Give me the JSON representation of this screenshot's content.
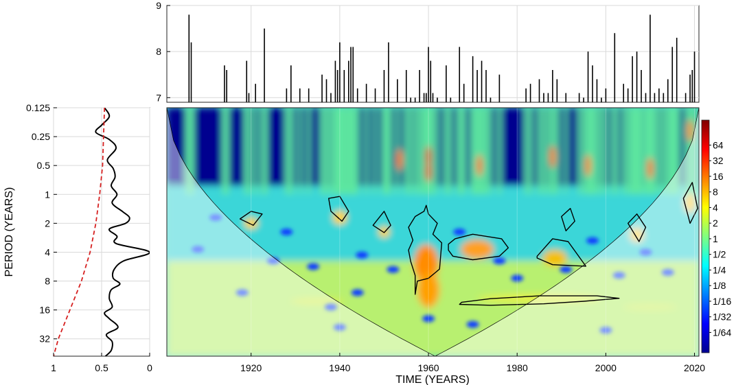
{
  "chart_data": [
    {
      "type": "bar",
      "panel": "top",
      "xlabel": "",
      "ylabel": "",
      "xlim": [
        1901,
        2021
      ],
      "ylim": [
        6.9,
        9
      ],
      "yticks": [
        7,
        8,
        9
      ],
      "ytick_labels": [
        "7",
        "8",
        "9"
      ],
      "grid": true,
      "x": [
        1906,
        1906.5,
        1914,
        1914.5,
        1919,
        1919.5,
        1921,
        1923,
        1928,
        1929,
        1931,
        1933,
        1936,
        1937,
        1938,
        1939,
        1939.5,
        1940,
        1941,
        1942,
        1942.5,
        1943,
        1944,
        1946,
        1948,
        1950,
        1951,
        1953,
        1955,
        1956,
        1957,
        1958,
        1959,
        1959.5,
        1960,
        1960.5,
        1961,
        1962,
        1964,
        1965,
        1967,
        1968,
        1970,
        1971,
        1972,
        1973,
        1974,
        1976,
        1982,
        1983,
        1985,
        1986,
        1987,
        1988,
        1989,
        1991,
        1994,
        1995,
        1996,
        1997,
        1998,
        1999,
        2000,
        2002,
        2004,
        2005,
        2006,
        2007,
        2008,
        2009,
        2010,
        2011,
        2012,
        2013,
        2014,
        2015,
        2016,
        2018,
        2019,
        2019.5,
        2020
      ],
      "values": [
        8.8,
        8.2,
        7.7,
        7.6,
        7.8,
        7.1,
        7.3,
        8.5,
        7.2,
        7.7,
        7.2,
        7.2,
        7.5,
        7.4,
        7.1,
        7.8,
        7.6,
        8.2,
        7.6,
        7.8,
        8.1,
        8.1,
        7.2,
        7.3,
        7.2,
        7.6,
        8.2,
        7.4,
        7.6,
        7.0,
        7.0,
        7.6,
        7.1,
        7.1,
        8.1,
        7.8,
        7.1,
        7.0,
        7.7,
        7.0,
        8.1,
        7.3,
        7.9,
        7.6,
        7.8,
        7.6,
        7.0,
        7.5,
        7.2,
        7.3,
        7.4,
        7.1,
        7.1,
        7.6,
        7.4,
        7.1,
        7.1,
        7.0,
        8.0,
        7.7,
        7.4,
        7.0,
        7.2,
        8.4,
        7.3,
        7.2,
        7.9,
        8.0,
        7.6,
        7.1,
        8.8,
        7.1,
        7.2,
        7.1,
        7.4,
        8.1,
        8.3,
        7.1,
        7.5,
        7.6,
        8.0
      ]
    },
    {
      "type": "heatmap",
      "panel": "main",
      "xlabel": "TIME (YEARS)",
      "ylabel": "",
      "xlim": [
        1901,
        2021
      ],
      "xticks": [
        1920,
        1940,
        1960,
        1980,
        2000,
        2020
      ],
      "xtick_labels": [
        "1920",
        "1940",
        "1960",
        "1980",
        "2000",
        "2020"
      ],
      "ylim_log2": [
        -3,
        5.6
      ],
      "colormap": "jet",
      "colorbar_ticks_log2": [
        -6,
        -5,
        -4,
        -3,
        -2,
        -1,
        0,
        1,
        2,
        3,
        4,
        5,
        6
      ],
      "colorbar_labels": [
        "1/64",
        "1/32",
        "1/16",
        "1/8",
        "1/4",
        "1/2",
        "1",
        "2",
        "4",
        "8",
        "16",
        "32",
        "64"
      ],
      "colorbar_range_log2": [
        -7.3,
        7.6
      ],
      "cone_of_influence": true,
      "significance_contours": [
        {
          "x": [
            1957,
            1957.5,
            1960,
            1962.5,
            1963,
            1961,
            1962,
            1960,
            1959.5,
            1959,
            1957,
            1955.5,
            1956.5,
            1955.5,
            1956,
            1957
          ],
          "period": [
            11,
            8,
            7.5,
            6,
            3.2,
            2.6,
            2,
            1.6,
            1.3,
            1.5,
            1.7,
            2.2,
            3,
            3.8,
            5,
            7
          ]
        },
        {
          "x": [
            1964.5,
            1966,
            1970,
            1976.5,
            1978,
            1976,
            1970,
            1965.5,
            1964.5
          ],
          "period": [
            3.3,
            2.9,
            2.6,
            2.9,
            3.6,
            4.4,
            4.8,
            4.4,
            3.8
          ]
        },
        {
          "x": [
            1967,
            1974,
            1986,
            1995,
            2003,
            1998,
            1985,
            1974,
            1967.5
          ],
          "period": [
            14,
            14.3,
            13.8,
            13,
            12.1,
            11.4,
            11.4,
            12.2,
            13.3
          ]
        },
        {
          "x": [
            1984.5,
            1988,
            1991.5,
            1995.5,
            1988,
            1984.5
          ],
          "period": [
            4.4,
            2.9,
            3.1,
            5.6,
            5.4,
            4.6
          ]
        },
        {
          "x": [
            1917.5,
            1920,
            1922.5,
            1920.5,
            1917.5
          ],
          "period": [
            1.8,
            1.5,
            1.6,
            2.1,
            1.8
          ]
        },
        {
          "x": [
            1937.5,
            1940,
            1942,
            1940.5,
            1938,
            1937.5
          ],
          "period": [
            1.1,
            1.05,
            1.5,
            1.9,
            1.5,
            1.1
          ]
        },
        {
          "x": [
            1947.5,
            1950,
            1951.5,
            1950,
            1947.5
          ],
          "period": [
            2.1,
            1.5,
            2.1,
            2.5,
            2.1
          ]
        },
        {
          "x": [
            1990,
            1992,
            1993,
            1991,
            1990
          ],
          "period": [
            1.7,
            1.4,
            1.9,
            2.4,
            1.7
          ]
        },
        {
          "x": [
            2005,
            2007,
            2009,
            2007.5,
            2005
          ],
          "period": [
            2.0,
            1.6,
            2.2,
            3.1,
            2.0
          ]
        },
        {
          "x": [
            2017.5,
            2019.5,
            2020.7,
            2019,
            2017.5
          ],
          "period": [
            1.1,
            0.75,
            1.4,
            2.0,
            1.1
          ]
        }
      ]
    },
    {
      "type": "line",
      "panel": "left",
      "xlabel": "",
      "ylabel": "PERIOD (YEARS)",
      "xlim": [
        1,
        0
      ],
      "xticks": [
        1,
        0.5,
        0
      ],
      "xtick_labels": [
        "1",
        "0.5",
        "0"
      ],
      "yticks_log2": [
        -3,
        -2,
        -1,
        0,
        1,
        2,
        3,
        4,
        5
      ],
      "ytick_labels": [
        "0.125",
        "0.25",
        "0.5",
        "1",
        "2",
        "4",
        "8",
        "16",
        "32"
      ],
      "ylim_log2": [
        -3,
        5.6
      ],
      "grid": true,
      "series": [
        {
          "style": "solid",
          "color": "#000000",
          "period_log2": [
            -3,
            -2.7,
            -2.4,
            -2.15,
            -1.9,
            -1.6,
            -1.2,
            -0.9,
            -0.6,
            -0.3,
            0,
            0.3,
            0.6,
            0.8,
            1.0,
            1.2,
            1.45,
            1.7,
            2.0,
            2.3,
            2.6,
            2.9,
            3.1,
            3.3,
            3.6,
            3.9,
            4.1,
            4.3,
            4.6,
            4.85,
            5.1,
            5.4,
            5.6
          ],
          "power": [
            0.47,
            0.42,
            0.5,
            0.56,
            0.42,
            0.35,
            0.44,
            0.38,
            0.36,
            0.4,
            0.34,
            0.39,
            0.28,
            0.21,
            0.25,
            0.42,
            0.34,
            0.35,
            0.0,
            0.27,
            0.37,
            0.38,
            0.31,
            0.4,
            0.42,
            0.39,
            0.47,
            0.42,
            0.33,
            0.45,
            0.39,
            0.4,
            0.46
          ]
        },
        {
          "style": "dashed",
          "color": "#d62020",
          "period_log2": [
            -3,
            -2,
            -1,
            0,
            1,
            2,
            3,
            4,
            5,
            5.6
          ],
          "power": [
            0.47,
            0.48,
            0.49,
            0.52,
            0.56,
            0.62,
            0.71,
            0.83,
            0.95,
            1.0
          ]
        }
      ]
    }
  ]
}
